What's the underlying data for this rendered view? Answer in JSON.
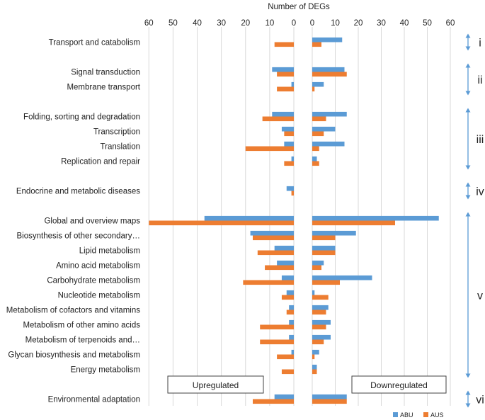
{
  "chart_data": {
    "type": "bar",
    "orientation": "horizontal",
    "title": "Number of DEGs",
    "x_ticks_left": [
      "60",
      "50",
      "40",
      "30",
      "20",
      "10",
      "0"
    ],
    "x_ticks_right": [
      "0",
      "10",
      "20",
      "30",
      "40",
      "50",
      "60"
    ],
    "xlim_left": [
      0,
      60
    ],
    "xlim_right": [
      0,
      60
    ],
    "grid": true,
    "panels": {
      "left": {
        "name": "Upregulated"
      },
      "right": {
        "name": "Downregulated"
      }
    },
    "legend": {
      "position": "bottom-right",
      "entries": [
        "ABU",
        "AUS"
      ]
    },
    "colors": {
      "ABU": "#5b9bd5",
      "AUS": "#ed7d31",
      "grid": "#d9d9d9",
      "bracket": "#5b9bd5"
    },
    "series": [
      {
        "name": "ABU",
        "up": [
          0,
          9,
          1,
          9,
          5,
          4,
          1,
          3,
          37,
          18,
          8,
          7,
          5,
          3,
          2,
          2,
          2,
          1,
          0,
          8
        ],
        "down": [
          13,
          14,
          5,
          15,
          10,
          14,
          2,
          0,
          55,
          19,
          10,
          5,
          26,
          1,
          7,
          8,
          8,
          3,
          2,
          15
        ]
      },
      {
        "name": "AUS",
        "up": [
          8,
          7,
          7,
          13,
          4,
          20,
          4,
          1,
          60,
          17,
          15,
          12,
          21,
          5,
          3,
          14,
          14,
          7,
          5,
          17
        ],
        "down": [
          4,
          15,
          1,
          6,
          5,
          3,
          3,
          0,
          36,
          10,
          10,
          4,
          12,
          7,
          6,
          6,
          5,
          1,
          2,
          15
        ]
      }
    ],
    "categories": [
      {
        "label": "Transport and catabolism",
        "row": 0
      },
      {
        "label": "Signal transduction",
        "row": 2
      },
      {
        "label": "Membrane transport",
        "row": 3
      },
      {
        "label": "Folding, sorting and degradation",
        "row": 5
      },
      {
        "label": "Transcription",
        "row": 6
      },
      {
        "label": "Translation",
        "row": 7
      },
      {
        "label": "Replication and repair",
        "row": 8
      },
      {
        "label": "Endocrine and metabolic diseases",
        "row": 10
      },
      {
        "label": "Global and overview maps",
        "row": 12
      },
      {
        "label": "Biosynthesis of other secondary…",
        "row": 13
      },
      {
        "label": "Lipid metabolism",
        "row": 14
      },
      {
        "label": "Amino acid metabolism",
        "row": 15
      },
      {
        "label": "Carbohydrate metabolism",
        "row": 16
      },
      {
        "label": "Nucleotide metabolism",
        "row": 17
      },
      {
        "label": "Metabolism of cofactors and vitamins",
        "row": 18
      },
      {
        "label": "Metabolism of other amino acids",
        "row": 19
      },
      {
        "label": "Metabolism of terpenoids and…",
        "row": 20
      },
      {
        "label": "Glycan biosynthesis and metabolism",
        "row": 21
      },
      {
        "label": "Energy metabolism",
        "row": 22
      },
      {
        "label": "Environmental adaptation",
        "row": 24
      }
    ],
    "groups": [
      {
        "label": "i",
        "first_row": 0,
        "last_row": 0
      },
      {
        "label": "ii",
        "first_row": 2,
        "last_row": 3
      },
      {
        "label": "iii",
        "first_row": 5,
        "last_row": 8
      },
      {
        "label": "iv",
        "first_row": 10,
        "last_row": 10
      },
      {
        "label": "v",
        "first_row": 12,
        "last_row": 22
      },
      {
        "label": "vi",
        "first_row": 24,
        "last_row": 24
      }
    ]
  }
}
